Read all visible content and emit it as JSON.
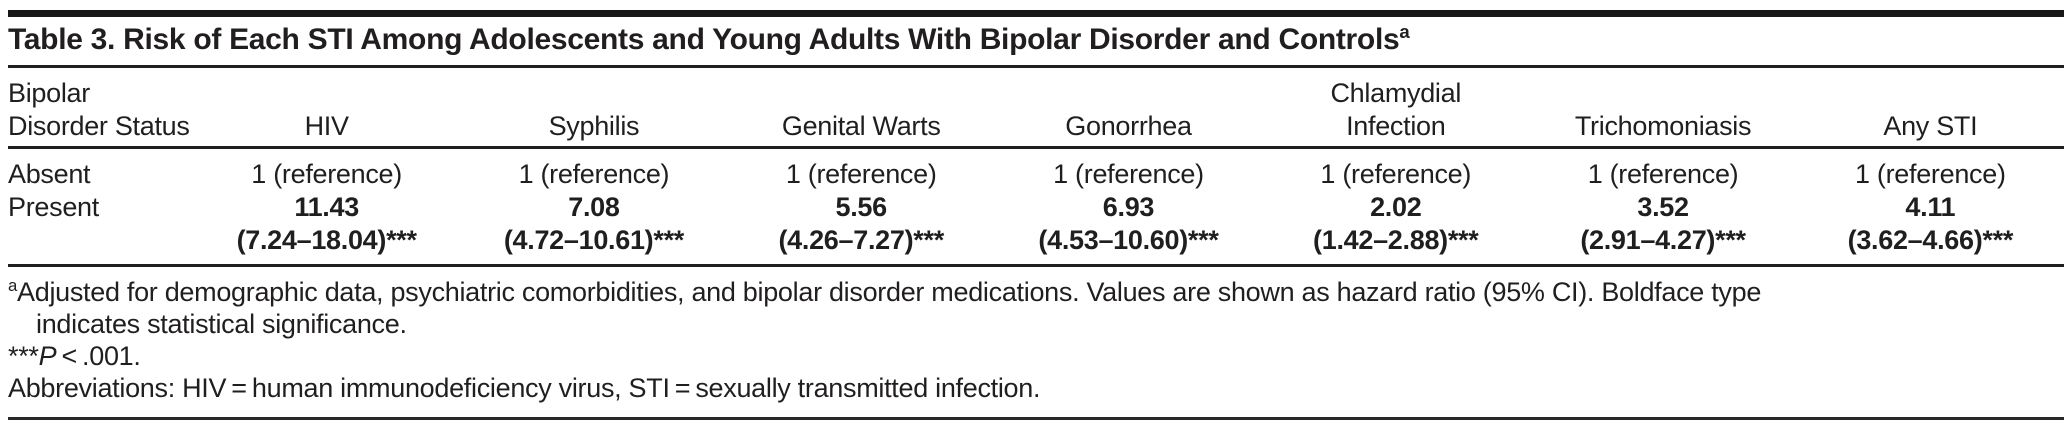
{
  "table": {
    "title": "Table 3. Risk of Each STI Among Adolescents and Young Adults With Bipolar Disorder and Controls",
    "title_superscript": "a",
    "headers": [
      "Bipolar\nDisorder Status",
      "HIV",
      "Syphilis",
      "Genital Warts",
      "Gonorrhea",
      "Chlamydial\nInfection",
      "Trichomoniasis",
      "Any STI"
    ],
    "rows": {
      "absent": {
        "label": "Absent",
        "values": [
          "1 (reference)",
          "1 (reference)",
          "1 (reference)",
          "1 (reference)",
          "1 (reference)",
          "1 (reference)",
          "1 (reference)"
        ]
      },
      "present": {
        "label": "Present",
        "hazard_ratios": [
          "11.43",
          "7.08",
          "5.56",
          "6.93",
          "2.02",
          "3.52",
          "4.11"
        ],
        "confidence_intervals": [
          "(7.24–18.04)***",
          "(4.72–10.61)***",
          "(4.26–7.27)***",
          "(4.53–10.60)***",
          "(1.42–2.88)***",
          "(2.91–4.27)***",
          "(3.62–4.66)***"
        ]
      }
    }
  },
  "footnotes": {
    "a_marker": "a",
    "a_line1": "Adjusted for demographic data, psychiatric comorbidities, and bipolar disorder medications. Values are shown as hazard ratio (95% CI). Boldface type",
    "a_line2": "indicates statistical significance.",
    "significance_stars": "***",
    "significance_p": "P",
    "significance_rest": " < .001.",
    "abbreviations": "Abbreviations: HIV = human immunodeficiency virus, STI = sexually transmitted infection."
  },
  "colors": {
    "text": "#211e1f",
    "rule": "#211e1f",
    "top_bar": "#1a1718",
    "background": "#ffffff"
  }
}
